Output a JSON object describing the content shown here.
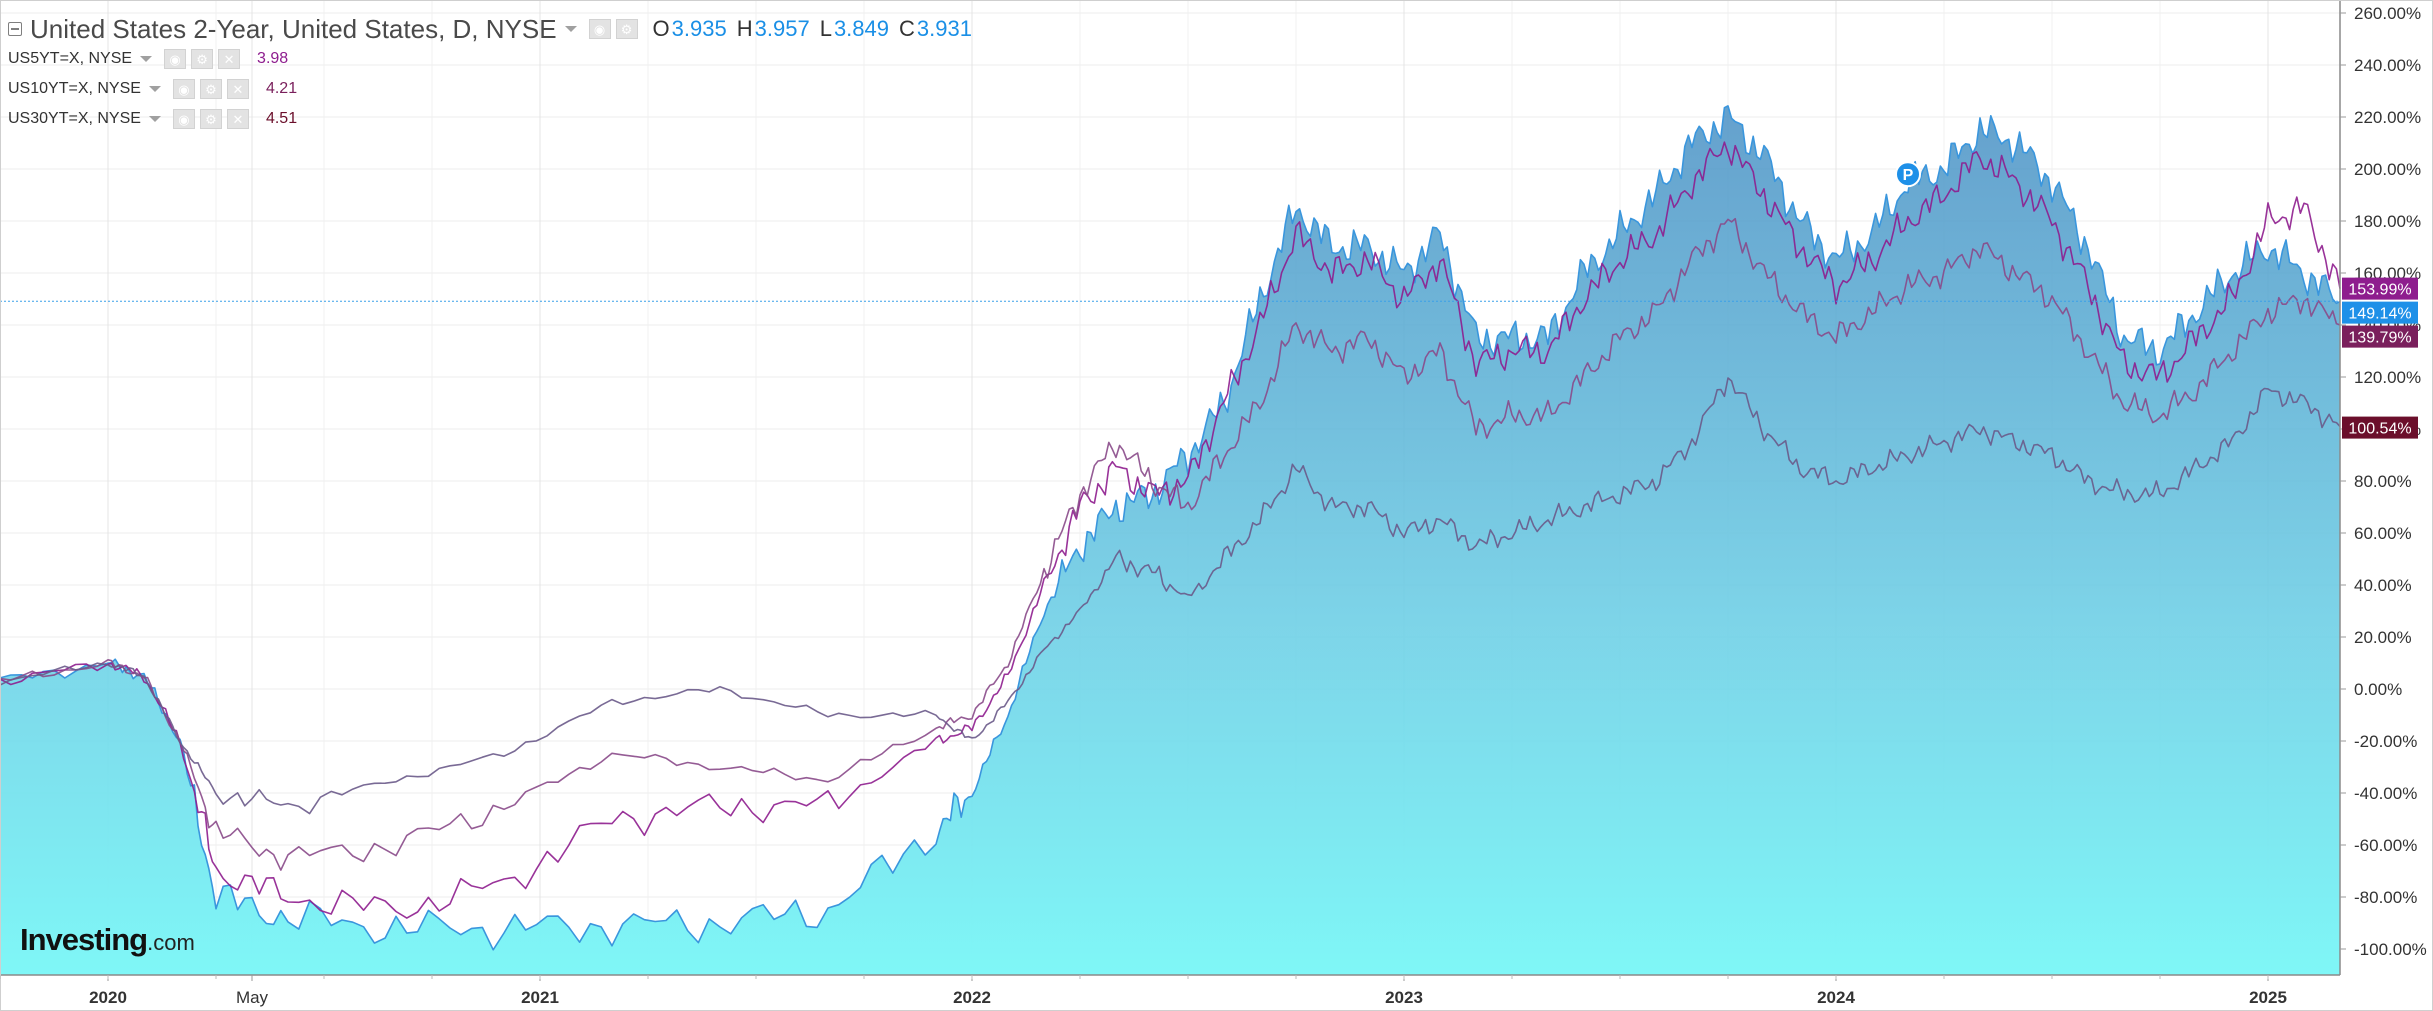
{
  "legend": {
    "main": {
      "title": "United States 2-Year, United States, D, NYSE",
      "o_key": "O",
      "o_val": "3.935",
      "h_key": "H",
      "h_val": "3.957",
      "l_key": "L",
      "l_val": "3.849",
      "c_key": "C",
      "c_val": "3.931"
    },
    "series": [
      {
        "title": "US5YT=X, NYSE",
        "value": "3.98",
        "color": "#8e1d8e"
      },
      {
        "title": "US10YT=X, NYSE",
        "value": "4.21",
        "color": "#7a1f5c"
      },
      {
        "title": "US30YT=X, NYSE",
        "value": "4.51",
        "color": "#6b0f2b"
      }
    ]
  },
  "icons": {
    "collapse": "collapse-icon",
    "eye": "eye-icon",
    "settings": "settings-icon",
    "close": "close-icon",
    "dropdown": "chevron-down-icon",
    "marker": "marker-p-icon"
  },
  "logo": {
    "main": "Investing",
    "suffix": ".com"
  },
  "marker_label": "P",
  "colors": {
    "area_top": "#4a90c4",
    "area_bottom": "#7ff7f7",
    "main_line": "#3a96dd",
    "us5": "#8e1d8e",
    "us10": "#8a4a8a",
    "us30": "#6a5a8a",
    "crosshair": "#3aa0e8"
  },
  "chart_data": {
    "type": "area",
    "x_range": [
      "2019-10",
      "2025-03"
    ],
    "y_unit": "%",
    "ylim": [
      -110,
      265
    ],
    "y_ticks": [
      "260.00%",
      "240.00%",
      "220.00%",
      "200.00%",
      "180.00%",
      "160.00%",
      "140.00%",
      "120.00%",
      "100.00%",
      "80.00%",
      "60.00%",
      "40.00%",
      "20.00%",
      "0.00%",
      "-20.00%",
      "-40.00%",
      "-60.00%",
      "-80.00%",
      "-100.00%"
    ],
    "x_ticks": [
      "2020",
      "May",
      "2021",
      "2022",
      "2023",
      "2024",
      "2025"
    ],
    "x_tick_dates": [
      "2020-01",
      "2020-05",
      "2021-01",
      "2022-01",
      "2023-01",
      "2024-01",
      "2025-01"
    ],
    "last_value_labels": [
      {
        "text": "153.99%",
        "value": 153.99,
        "color": "#8e1d8e"
      },
      {
        "text": "149.14%",
        "value": 149.14,
        "color": "#1e90e8"
      },
      {
        "text": "139.79%",
        "value": 139.79,
        "color": "#7a1f5c"
      },
      {
        "text": "100.54%",
        "value": 100.54,
        "color": "#6b0f2b"
      }
    ],
    "crosshair_value": 149.14,
    "marker": {
      "date": "2024-03",
      "value": 198
    },
    "series": [
      {
        "name": "United States 2-Year",
        "x": [
          "2019-10",
          "2020-01",
          "2020-02",
          "2020-03",
          "2020-04",
          "2020-06",
          "2020-09",
          "2020-12",
          "2021-03",
          "2021-06",
          "2021-09",
          "2021-12",
          "2022-01",
          "2022-02",
          "2022-03",
          "2022-04",
          "2022-05",
          "2022-06",
          "2022-07",
          "2022-08",
          "2022-09",
          "2022-10",
          "2022-11",
          "2022-12",
          "2023-01",
          "2023-02",
          "2023-03",
          "2023-04",
          "2023-05",
          "2023-06",
          "2023-07",
          "2023-08",
          "2023-09",
          "2023-10",
          "2023-11",
          "2023-12",
          "2024-01",
          "2024-02",
          "2024-03",
          "2024-04",
          "2024-05",
          "2024-06",
          "2024-07",
          "2024-08",
          "2024-09",
          "2024-10",
          "2024-11",
          "2024-12",
          "2025-01",
          "2025-02",
          "2025-03"
        ],
        "values": [
          3,
          10,
          5,
          -20,
          -80,
          -88,
          -92,
          -92,
          -91,
          -90,
          -85,
          -55,
          -40,
          -10,
          30,
          55,
          70,
          75,
          90,
          110,
          150,
          185,
          170,
          170,
          160,
          175,
          135,
          135,
          135,
          160,
          175,
          190,
          210,
          220,
          205,
          180,
          165,
          175,
          195,
          200,
          215,
          210,
          195,
          170,
          135,
          130,
          145,
          160,
          170,
          160,
          149
        ]
      },
      {
        "name": "US5YT=X",
        "x": [
          "2019-10",
          "2020-01",
          "2020-02",
          "2020-03",
          "2020-04",
          "2020-06",
          "2020-09",
          "2020-12",
          "2021-03",
          "2021-06",
          "2021-09",
          "2021-12",
          "2022-01",
          "2022-02",
          "2022-03",
          "2022-04",
          "2022-05",
          "2022-06",
          "2022-07",
          "2022-08",
          "2022-09",
          "2022-10",
          "2022-11",
          "2022-12",
          "2023-01",
          "2023-02",
          "2023-03",
          "2023-04",
          "2023-05",
          "2023-06",
          "2023-07",
          "2023-08",
          "2023-09",
          "2023-10",
          "2023-11",
          "2023-12",
          "2024-01",
          "2024-02",
          "2024-03",
          "2024-04",
          "2024-05",
          "2024-06",
          "2024-07",
          "2024-08",
          "2024-09",
          "2024-10",
          "2024-11",
          "2024-12",
          "2025-01",
          "2025-02",
          "2025-03"
        ],
        "values": [
          3,
          10,
          5,
          -20,
          -70,
          -80,
          -85,
          -75,
          -50,
          -45,
          -45,
          -20,
          -15,
          5,
          40,
          70,
          85,
          75,
          80,
          110,
          140,
          175,
          160,
          165,
          150,
          165,
          125,
          130,
          130,
          150,
          165,
          175,
          195,
          210,
          190,
          170,
          155,
          165,
          180,
          190,
          205,
          195,
          180,
          155,
          125,
          120,
          135,
          150,
          180,
          185,
          154
        ]
      },
      {
        "name": "US10YT=X",
        "x": [
          "2019-10",
          "2020-01",
          "2020-02",
          "2020-03",
          "2020-04",
          "2020-06",
          "2020-09",
          "2020-12",
          "2021-03",
          "2021-06",
          "2021-09",
          "2021-12",
          "2022-01",
          "2022-02",
          "2022-03",
          "2022-04",
          "2022-05",
          "2022-06",
          "2022-07",
          "2022-08",
          "2022-09",
          "2022-10",
          "2022-11",
          "2022-12",
          "2023-01",
          "2023-02",
          "2023-03",
          "2023-04",
          "2023-05",
          "2023-06",
          "2023-07",
          "2023-08",
          "2023-09",
          "2023-10",
          "2023-11",
          "2023-12",
          "2024-01",
          "2024-02",
          "2024-03",
          "2024-04",
          "2024-05",
          "2024-06",
          "2024-07",
          "2024-08",
          "2024-09",
          "2024-10",
          "2024-11",
          "2024-12",
          "2025-01",
          "2025-02",
          "2025-03"
        ],
        "values": [
          3,
          10,
          5,
          -20,
          -55,
          -65,
          -60,
          -45,
          -25,
          -30,
          -35,
          -15,
          -10,
          10,
          45,
          75,
          95,
          80,
          70,
          90,
          110,
          140,
          130,
          135,
          120,
          130,
          100,
          105,
          105,
          120,
          135,
          145,
          165,
          180,
          160,
          145,
          135,
          145,
          155,
          160,
          170,
          160,
          150,
          130,
          110,
          105,
          115,
          130,
          145,
          150,
          140
        ]
      },
      {
        "name": "US30YT=X",
        "x": [
          "2019-10",
          "2020-01",
          "2020-02",
          "2020-03",
          "2020-04",
          "2020-06",
          "2020-09",
          "2020-12",
          "2021-03",
          "2021-06",
          "2021-09",
          "2021-12",
          "2022-01",
          "2022-02",
          "2022-03",
          "2022-04",
          "2022-05",
          "2022-06",
          "2022-07",
          "2022-08",
          "2022-09",
          "2022-10",
          "2022-11",
          "2022-12",
          "2023-01",
          "2023-02",
          "2023-03",
          "2023-04",
          "2023-05",
          "2023-06",
          "2023-07",
          "2023-08",
          "2023-09",
          "2023-10",
          "2023-11",
          "2023-12",
          "2024-01",
          "2024-02",
          "2024-03",
          "2024-04",
          "2024-05",
          "2024-06",
          "2024-07",
          "2024-08",
          "2024-09",
          "2024-10",
          "2024-11",
          "2024-12",
          "2025-01",
          "2025-02",
          "2025-03"
        ],
        "values": [
          3,
          10,
          5,
          -20,
          -40,
          -45,
          -35,
          -25,
          -5,
          0,
          -10,
          -10,
          -20,
          -5,
          15,
          30,
          50,
          45,
          35,
          50,
          65,
          85,
          70,
          70,
          60,
          65,
          55,
          60,
          65,
          70,
          75,
          80,
          95,
          120,
          100,
          85,
          80,
          85,
          90,
          95,
          100,
          95,
          90,
          80,
          75,
          75,
          85,
          95,
          115,
          110,
          101
        ]
      }
    ]
  }
}
